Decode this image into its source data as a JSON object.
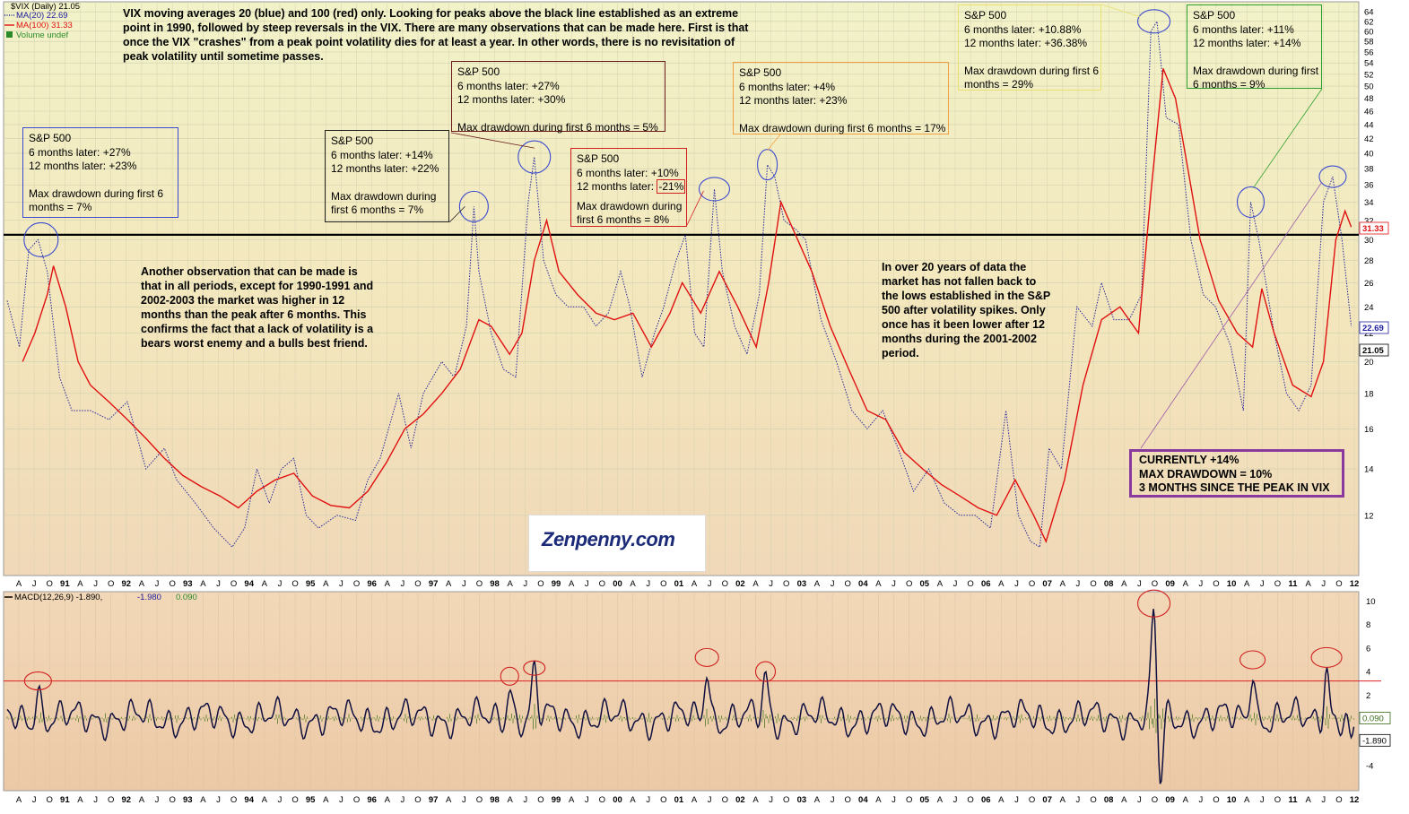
{
  "chart_data": [
    {
      "type": "line",
      "panel": "price",
      "symbol_label": "$VIX (Daily) 21.05",
      "legend": [
        {
          "label": "MA(20) 22.69",
          "color": "#2020a0",
          "style": "dotted"
        },
        {
          "label": "MA(100) 31.33",
          "color": "#e01010",
          "style": "solid"
        },
        {
          "label": "Volume undef",
          "color": "#2a8a2a",
          "style": "bar"
        }
      ],
      "x_ticks": [
        "A",
        "J",
        "O",
        "91",
        "A",
        "J",
        "O",
        "92",
        "A",
        "J",
        "O",
        "93",
        "A",
        "J",
        "O",
        "94",
        "A",
        "J",
        "O",
        "95",
        "A",
        "J",
        "O",
        "96",
        "A",
        "J",
        "O",
        "97",
        "A",
        "J",
        "O",
        "98",
        "A",
        "J",
        "O",
        "99",
        "A",
        "J",
        "O",
        "00",
        "A",
        "J",
        "O",
        "01",
        "A",
        "J",
        "O",
        "02",
        "A",
        "J",
        "O",
        "03",
        "A",
        "J",
        "O",
        "04",
        "A",
        "J",
        "O",
        "05",
        "A",
        "J",
        "O",
        "06",
        "A",
        "J",
        "O",
        "07",
        "A",
        "J",
        "O",
        "08",
        "A",
        "J",
        "O",
        "09",
        "A",
        "J",
        "O",
        "10",
        "A",
        "J",
        "O",
        "11",
        "A",
        "J",
        "O",
        "12"
      ],
      "y_ticks": [
        "64",
        "62",
        "60",
        "58",
        "56",
        "54",
        "52",
        "50",
        "48",
        "46",
        "44",
        "42",
        "40",
        "38",
        "36",
        "34",
        "32",
        "30",
        "28",
        "26",
        "24",
        "22",
        "20",
        "18",
        "16",
        "14",
        "12"
      ],
      "ylim": [
        10,
        65
      ],
      "yscale": "log",
      "reference_line": 30.5,
      "last_value_tags": [
        {
          "text": "31.33",
          "color": "#e01010"
        },
        {
          "text": "22.69",
          "color": "#2020a0"
        },
        {
          "text": "21.05",
          "color": "#000000"
        }
      ],
      "x_range": [
        1990.25,
        2012.1
      ],
      "series": [
        {
          "name": "MA(20)",
          "color": "#2a2a9a",
          "points": [
            [
              1990.25,
              24.5
            ],
            [
              1990.45,
              21
            ],
            [
              1990.6,
              29
            ],
            [
              1990.75,
              30
            ],
            [
              1990.9,
              27
            ],
            [
              1991.1,
              19
            ],
            [
              1991.3,
              17
            ],
            [
              1991.6,
              17
            ],
            [
              1991.9,
              16.5
            ],
            [
              1992.2,
              17.5
            ],
            [
              1992.5,
              14
            ],
            [
              1992.8,
              15
            ],
            [
              1993.0,
              13.5
            ],
            [
              1993.3,
              12.5
            ],
            [
              1993.6,
              11.5
            ],
            [
              1993.9,
              10.8
            ],
            [
              1994.1,
              11.5
            ],
            [
              1994.3,
              14
            ],
            [
              1994.5,
              12.5
            ],
            [
              1994.7,
              14
            ],
            [
              1994.9,
              14.5
            ],
            [
              1995.1,
              12
            ],
            [
              1995.3,
              11.5
            ],
            [
              1995.6,
              12
            ],
            [
              1995.9,
              11.8
            ],
            [
              1996.1,
              13.5
            ],
            [
              1996.3,
              14.5
            ],
            [
              1996.6,
              18
            ],
            [
              1996.8,
              15
            ],
            [
              1997.0,
              18
            ],
            [
              1997.3,
              20
            ],
            [
              1997.5,
              19
            ],
            [
              1997.7,
              22.5
            ],
            [
              1997.82,
              33.5
            ],
            [
              1997.9,
              27
            ],
            [
              1998.1,
              22
            ],
            [
              1998.3,
              19.5
            ],
            [
              1998.5,
              19
            ],
            [
              1998.7,
              34
            ],
            [
              1998.8,
              39.5
            ],
            [
              1998.95,
              28
            ],
            [
              1999.15,
              25
            ],
            [
              1999.35,
              24
            ],
            [
              1999.6,
              24
            ],
            [
              1999.8,
              22.5
            ],
            [
              2000.0,
              23.5
            ],
            [
              2000.2,
              27
            ],
            [
              2000.35,
              24
            ],
            [
              2000.55,
              19
            ],
            [
              2000.75,
              22
            ],
            [
              2000.9,
              24
            ],
            [
              2001.1,
              28
            ],
            [
              2001.25,
              30.5
            ],
            [
              2001.4,
              22
            ],
            [
              2001.55,
              21
            ],
            [
              2001.72,
              35.5
            ],
            [
              2001.85,
              27
            ],
            [
              2002.05,
              22.5
            ],
            [
              2002.25,
              20.5
            ],
            [
              2002.45,
              25
            ],
            [
              2002.58,
              38.5
            ],
            [
              2002.7,
              37
            ],
            [
              2002.85,
              32
            ],
            [
              2003.05,
              31
            ],
            [
              2003.2,
              30
            ],
            [
              2003.45,
              23
            ],
            [
              2003.7,
              20
            ],
            [
              2003.95,
              17
            ],
            [
              2004.2,
              16
            ],
            [
              2004.45,
              17
            ],
            [
              2004.7,
              15
            ],
            [
              2004.95,
              13
            ],
            [
              2005.2,
              14
            ],
            [
              2005.45,
              12.5
            ],
            [
              2005.7,
              12
            ],
            [
              2005.95,
              12
            ],
            [
              2006.2,
              11.5
            ],
            [
              2006.45,
              17
            ],
            [
              2006.65,
              12
            ],
            [
              2006.85,
              11
            ],
            [
              2007.0,
              10.8
            ],
            [
              2007.15,
              15
            ],
            [
              2007.35,
              14
            ],
            [
              2007.6,
              24
            ],
            [
              2007.85,
              22.5
            ],
            [
              2008.0,
              26
            ],
            [
              2008.2,
              23
            ],
            [
              2008.45,
              23
            ],
            [
              2008.65,
              25
            ],
            [
              2008.8,
              60
            ],
            [
              2008.9,
              62
            ],
            [
              2009.05,
              45
            ],
            [
              2009.25,
              44
            ],
            [
              2009.45,
              30
            ],
            [
              2009.65,
              25
            ],
            [
              2009.85,
              24
            ],
            [
              2010.1,
              21
            ],
            [
              2010.3,
              17
            ],
            [
              2010.42,
              34
            ],
            [
              2010.55,
              30
            ],
            [
              2010.8,
              22
            ],
            [
              2011.0,
              18
            ],
            [
              2011.2,
              17
            ],
            [
              2011.4,
              18.5
            ],
            [
              2011.6,
              34
            ],
            [
              2011.75,
              37
            ],
            [
              2011.9,
              30
            ],
            [
              2012.05,
              22.5
            ]
          ]
        },
        {
          "name": "MA(100)",
          "color": "#e01010",
          "points": [
            [
              1990.5,
              20
            ],
            [
              1990.7,
              22
            ],
            [
              1990.9,
              25
            ],
            [
              1991.0,
              27.5
            ],
            [
              1991.2,
              24
            ],
            [
              1991.4,
              20
            ],
            [
              1991.6,
              18.5
            ],
            [
              1991.9,
              17.5
            ],
            [
              1992.2,
              16.5
            ],
            [
              1992.5,
              15.5
            ],
            [
              1992.8,
              14.5
            ],
            [
              1993.1,
              13.7
            ],
            [
              1993.4,
              13.2
            ],
            [
              1993.7,
              12.8
            ],
            [
              1994.0,
              12.3
            ],
            [
              1994.3,
              13
            ],
            [
              1994.6,
              13.5
            ],
            [
              1994.9,
              13.8
            ],
            [
              1995.2,
              12.8
            ],
            [
              1995.5,
              12.4
            ],
            [
              1995.8,
              12.3
            ],
            [
              1996.1,
              13
            ],
            [
              1996.4,
              14.3
            ],
            [
              1996.7,
              16
            ],
            [
              1997.0,
              16.8
            ],
            [
              1997.3,
              18
            ],
            [
              1997.6,
              19.5
            ],
            [
              1997.9,
              23
            ],
            [
              1998.1,
              22.5
            ],
            [
              1998.4,
              20.5
            ],
            [
              1998.6,
              22
            ],
            [
              1998.8,
              28
            ],
            [
              1999.0,
              32
            ],
            [
              1999.2,
              27
            ],
            [
              1999.5,
              25
            ],
            [
              1999.8,
              23.5
            ],
            [
              2000.1,
              23
            ],
            [
              2000.4,
              23.5
            ],
            [
              2000.7,
              21
            ],
            [
              2001.0,
              23.5
            ],
            [
              2001.2,
              26
            ],
            [
              2001.5,
              23.5
            ],
            [
              2001.8,
              27
            ],
            [
              2002.1,
              24
            ],
            [
              2002.4,
              21
            ],
            [
              2002.6,
              26
            ],
            [
              2002.8,
              34
            ],
            [
              2003.0,
              31
            ],
            [
              2003.3,
              27
            ],
            [
              2003.6,
              22.5
            ],
            [
              2003.9,
              19.5
            ],
            [
              2004.2,
              17
            ],
            [
              2004.5,
              16.5
            ],
            [
              2004.8,
              14.8
            ],
            [
              2005.1,
              14
            ],
            [
              2005.4,
              13.3
            ],
            [
              2005.7,
              12.8
            ],
            [
              2006.0,
              12.3
            ],
            [
              2006.3,
              12
            ],
            [
              2006.6,
              13.5
            ],
            [
              2006.9,
              12
            ],
            [
              2007.1,
              11
            ],
            [
              2007.4,
              13.5
            ],
            [
              2007.7,
              18.5
            ],
            [
              2008.0,
              23
            ],
            [
              2008.3,
              24
            ],
            [
              2008.6,
              22
            ],
            [
              2008.8,
              35
            ],
            [
              2009.0,
              53
            ],
            [
              2009.2,
              48
            ],
            [
              2009.4,
              38
            ],
            [
              2009.6,
              30
            ],
            [
              2009.9,
              24.5
            ],
            [
              2010.2,
              22
            ],
            [
              2010.45,
              21
            ],
            [
              2010.6,
              25.5
            ],
            [
              2010.8,
              22
            ],
            [
              2011.1,
              18.5
            ],
            [
              2011.4,
              17.8
            ],
            [
              2011.6,
              20
            ],
            [
              2011.8,
              30
            ],
            [
              2011.95,
              33
            ],
            [
              2012.05,
              31.3
            ]
          ]
        }
      ]
    },
    {
      "type": "line",
      "panel": "indicator",
      "label_main": "MACD(12,26,9) -1.890,",
      "label_signal": "-1.980",
      "label_hist": "0.090",
      "ylim": [
        -6,
        10.5
      ],
      "y_ticks": [
        "10",
        "8",
        "6",
        "4",
        "2",
        "-4"
      ],
      "reference_line": 3.2,
      "last_value_tags": [
        {
          "text": "0.090",
          "color": "#3a6a1a"
        },
        {
          "text": "-1.890",
          "color": "#000000"
        }
      ],
      "x_ticks_same_as_price": true,
      "spikes": [
        [
          1990.75,
          3.2
        ],
        [
          1998.4,
          3.6
        ],
        [
          1998.8,
          4.3
        ],
        [
          2001.6,
          5.2
        ],
        [
          2002.55,
          4
        ],
        [
          2008.85,
          9.8
        ],
        [
          2008.95,
          -5.5
        ],
        [
          2010.45,
          5
        ],
        [
          2011.65,
          5.2
        ],
        [
          2012.05,
          -1.9
        ]
      ]
    }
  ],
  "annotations": {
    "header": [
      "VIX moving averages 20 (blue) and 100 (red) only. Looking for peaks above the black line established as an extreme",
      "point in 1990, followed by steep reversals in the VIX. There are many observations that can be made here. First is that",
      "once the VIX \"crashes\" from a peak point volatility dies for at least a year. In other words, there is no revisitation of",
      "peak volatility until sometime passes."
    ],
    "box1": [
      "S&P 500",
      "6 months later: +27%",
      "12 months later: +23%",
      "",
      "Max drawdown during first 6",
      "months = 7%"
    ],
    "box2": [
      "S&P 500",
      "6 months later: +14%",
      "12 months later: +22%",
      "",
      "Max drawdown during",
      "first 6 months = 7%"
    ],
    "box3": [
      "S&P 500",
      "6 months later: +27%",
      "12 months later: +30%",
      "",
      "Max drawdown during first 6 months = 5%"
    ],
    "box4_lines": [
      "S&P 500",
      "6 months later: +10%"
    ],
    "box4_12m_prefix": "12 months later: ",
    "box4_12m_value": "-21%",
    "box4_tail": [
      "",
      "Max drawdown during",
      "first 6 months = 8%"
    ],
    "box5": [
      "S&P 500",
      "6 months later: +4%",
      "12 months later: +23%",
      "",
      "Max drawdown during first 6 months = 17%"
    ],
    "box6": [
      "S&P 500",
      "6 months later: +10.88%",
      "12 months later: +36.38%",
      "",
      "Max drawdown during first 6",
      "months = 29%"
    ],
    "box7": [
      "S&P 500",
      "6 months later: +11%",
      "12 months later: +14%",
      "",
      "Max drawdown during first",
      "6 months = 9%"
    ],
    "observation_left": [
      "Another observation that can be made is",
      "that in all periods, except for 1990-1991 and",
      "2002-2003 the market was higher in 12",
      "months than the peak after 6 months. This",
      "confirms the fact that a lack of volatility is a",
      "bears worst enemy and a bulls best friend."
    ],
    "observation_right": [
      "In over 20 years of data the",
      "market has not fallen back to",
      "the lows established in the S&P",
      "500 after volatility spikes. Only",
      "once has it been lower after 12",
      "months during the 2001-2002",
      "period."
    ],
    "current": [
      "CURRENTLY +14%",
      "MAX DRAWDOWN = 10%",
      "3 MONTHS SINCE THE PEAK IN VIX"
    ],
    "logo": "Zenpenny.com"
  },
  "colors": {
    "ma20": "#2a2a9a",
    "ma100": "#e01010",
    "reference": "#000000",
    "macd": "#101040",
    "histogram": "#4a7a20",
    "circle": "#3a4ad0",
    "macd_circle": "#d02020",
    "current_box": "#8a3a9e"
  }
}
